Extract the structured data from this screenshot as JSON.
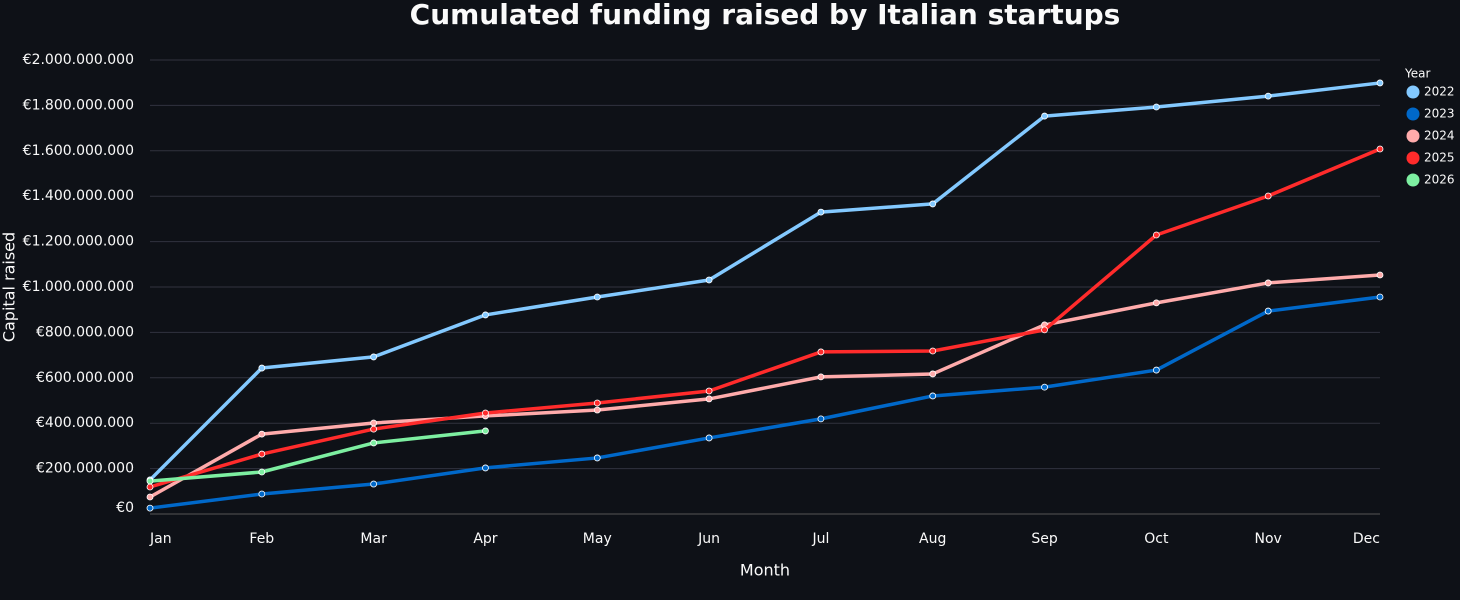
{
  "chart_data": {
    "type": "line",
    "title": "Cumulated funding raised by Italian startups",
    "x_label": "Month",
    "y_label": "Capital raised",
    "legend_title": "Year",
    "legend": "right",
    "grid": true,
    "categories": [
      "Jan",
      "Feb",
      "Mar",
      "Apr",
      "May",
      "Jun",
      "Jul",
      "Aug",
      "Sep",
      "Oct",
      "Nov",
      "Dec"
    ],
    "ylim": [
      0,
      2000000000
    ],
    "yticks": [
      {
        "value": 0,
        "label": "€0"
      },
      {
        "value": 200000000,
        "label": "€200.000.000"
      },
      {
        "value": 400000000,
        "label": "€400.000.000"
      },
      {
        "value": 600000000,
        "label": "€600.000.000"
      },
      {
        "value": 800000000,
        "label": "€800.000.000"
      },
      {
        "value": 1000000000,
        "label": "€1.000.000.000"
      },
      {
        "value": 1200000000,
        "label": "€1.200.000.000"
      },
      {
        "value": 1400000000,
        "label": "€1.400.000.000"
      },
      {
        "value": 1600000000,
        "label": "€1.600.000.000"
      },
      {
        "value": 1800000000,
        "label": "€1.800.000.000"
      },
      {
        "value": 2000000000,
        "label": "€2.000.000.000"
      }
    ],
    "series": [
      {
        "name": "2022",
        "color": "#83c9ff",
        "values": [
          150000000,
          643000000,
          692000000,
          877000000,
          956000000,
          1031000000,
          1330000000,
          1366000000,
          1753000000,
          1793000000,
          1841000000,
          1899000000
        ]
      },
      {
        "name": "2023",
        "color": "#0068c9",
        "values": [
          26000000,
          88000000,
          132000000,
          203000000,
          247000000,
          335000000,
          419000000,
          520000000,
          559000000,
          634000000,
          894000000,
          956000000
        ]
      },
      {
        "name": "2024",
        "color": "#ffabab",
        "values": [
          75000000,
          352000000,
          401000000,
          432000000,
          458000000,
          507000000,
          604000000,
          617000000,
          833000000,
          930000000,
          1018000000,
          1053000000
        ]
      },
      {
        "name": "2025",
        "color": "#ff2b2b",
        "values": [
          119000000,
          264000000,
          374000000,
          445000000,
          489000000,
          542000000,
          714000000,
          718000000,
          811000000,
          1229000000,
          1401000000,
          1608000000
        ]
      },
      {
        "name": "2026",
        "color": "#7defa1",
        "values": [
          145000000,
          185000000,
          313000000,
          366000000,
          null,
          null,
          null,
          null,
          null,
          null,
          null,
          null
        ]
      }
    ]
  }
}
